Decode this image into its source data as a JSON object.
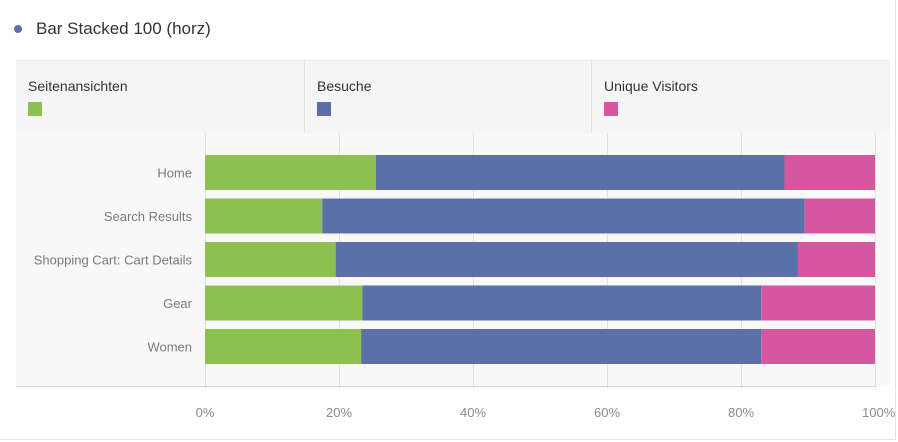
{
  "header": {
    "title": "Bar Stacked 100 (horz)"
  },
  "colors": {
    "dot": "#5b6fa8",
    "grid": "#e1e1e1",
    "tick_text": "#8a8a8a",
    "category_text": "#7a7a7a"
  },
  "legend": [
    {
      "label": "Seitenansichten",
      "color": "#8cc152"
    },
    {
      "label": "Besuche",
      "color": "#5b6fa8"
    },
    {
      "label": "Unique Visitors",
      "color": "#d6569f"
    }
  ],
  "chart_data": {
    "type": "bar",
    "orientation": "horizontal",
    "stacked": "percent",
    "title": "Bar Stacked 100 (horz)",
    "categories": [
      "Home",
      "Search Results",
      "Shopping Cart: Cart Details",
      "Gear",
      "Women"
    ],
    "series": [
      {
        "name": "Seitenansichten",
        "values": [
          25.5,
          17.5,
          19.5,
          23.5,
          23.3
        ]
      },
      {
        "name": "Besuche",
        "values": [
          61.0,
          72.0,
          69.0,
          59.5,
          59.7
        ]
      },
      {
        "name": "Unique Visitors",
        "values": [
          13.5,
          10.5,
          11.5,
          17.0,
          17.0
        ]
      }
    ],
    "x_ticks": [
      "0%",
      "20%",
      "40%",
      "60%",
      "80%",
      "100%"
    ],
    "xlim": [
      0,
      100
    ],
    "grid": true,
    "legend_position": "top"
  }
}
